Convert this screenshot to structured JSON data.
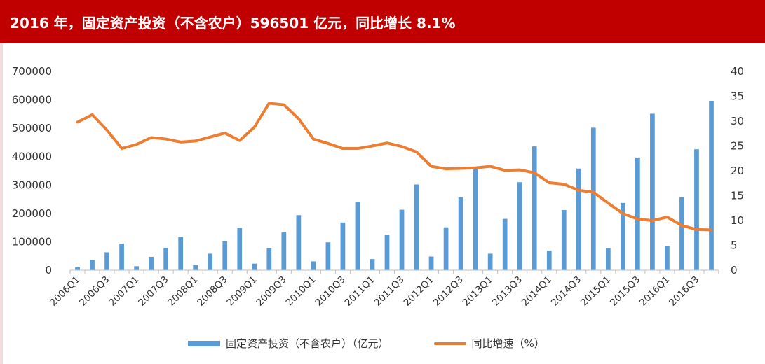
{
  "title": "2016 年，固定资产投资（不含农户）596501 亿元，同比增长 8.1%",
  "chart_data": {
    "type": "bar",
    "categories": [
      "2006Q1",
      "2006Q2",
      "2006Q3",
      "2006Q4",
      "2007Q1",
      "2007Q2",
      "2007Q3",
      "2007Q4",
      "2008Q1",
      "2008Q2",
      "2008Q3",
      "2008Q4",
      "2009Q1",
      "2009Q2",
      "2009Q3",
      "2009Q4",
      "2010Q1",
      "2010Q2",
      "2010Q3",
      "2010Q4",
      "2011Q1",
      "2011Q2",
      "2011Q3",
      "2011Q4",
      "2012Q1",
      "2012Q2",
      "2012Q3",
      "2012Q4",
      "2013Q1",
      "2013Q2",
      "2013Q3",
      "2013Q4",
      "2014Q1",
      "2014Q2",
      "2014Q3",
      "2014Q4",
      "2015Q1",
      "2015Q2",
      "2015Q3",
      "2015Q4",
      "2016Q1",
      "2016Q2",
      "2016Q3",
      "2016Q4"
    ],
    "x_tick_labels": [
      "2006Q1",
      "2006Q3",
      "2007Q1",
      "2007Q3",
      "2008Q1",
      "2008Q3",
      "2009Q1",
      "2009Q3",
      "2010Q1",
      "2010Q3",
      "2011Q1",
      "2011Q3",
      "2012Q1",
      "2012Q3",
      "2013Q1",
      "2013Q3",
      "2014Q1",
      "2014Q3",
      "2015Q1",
      "2015Q3",
      "2016Q1",
      "2016Q3"
    ],
    "series": [
      {
        "name": "固定资产投资（不含农户）（亿元）",
        "type": "bar",
        "axis": "left",
        "color": "#5b9bd5",
        "values": [
          10000,
          36000,
          63000,
          93000,
          14000,
          47000,
          79000,
          117000,
          18000,
          58000,
          102000,
          149000,
          23000,
          78000,
          133000,
          194000,
          31000,
          98000,
          168000,
          241000,
          39000,
          125000,
          213000,
          302000,
          48000,
          151000,
          257000,
          364000,
          58000,
          181000,
          310000,
          436000,
          68000,
          212000,
          358000,
          502000,
          77000,
          237000,
          397000,
          551000,
          85000,
          258000,
          426000,
          596501
        ]
      },
      {
        "name": "同比增速（%）",
        "type": "line",
        "axis": "right",
        "color": "#ed7d31",
        "values": [
          29.8,
          31.3,
          28.2,
          24.5,
          25.3,
          26.7,
          26.4,
          25.8,
          26.0,
          26.8,
          27.6,
          26.1,
          28.8,
          33.6,
          33.3,
          30.5,
          26.4,
          25.5,
          24.5,
          24.5,
          25.0,
          25.6,
          24.9,
          23.8,
          20.9,
          20.4,
          20.5,
          20.6,
          20.9,
          20.1,
          20.2,
          19.6,
          17.6,
          17.3,
          16.1,
          15.7,
          13.5,
          11.4,
          10.3,
          10.0,
          10.7,
          9.0,
          8.2,
          8.1
        ]
      }
    ],
    "y_left": {
      "ylim": [
        0,
        700000
      ],
      "ticks": [
        "0",
        "100000",
        "200000",
        "300000",
        "400000",
        "500000",
        "600000",
        "700000"
      ]
    },
    "y_right": {
      "ylim": [
        0,
        40
      ],
      "ticks": [
        "0",
        "5",
        "10",
        "15",
        "20",
        "25",
        "30",
        "35",
        "40"
      ]
    },
    "grid": false,
    "legend_position": "bottom"
  }
}
